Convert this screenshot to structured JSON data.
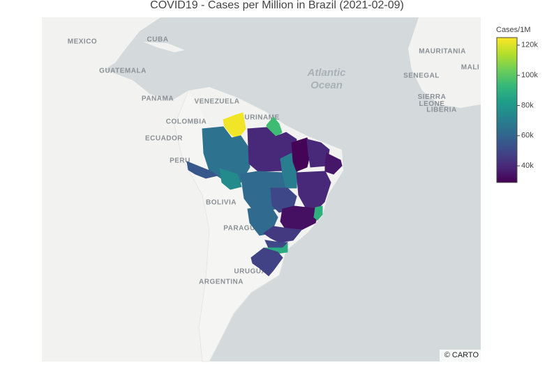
{
  "chart_data": {
    "type": "choropleth",
    "title": "COVID19 - Cases per Million in Brazil (2021-02-09)",
    "colorbar_title": "Cases/1M",
    "zlim": [
      29000,
      125000
    ],
    "zticks": [
      {
        "value": 40000,
        "label": "40k"
      },
      {
        "value": 60000,
        "label": "60k"
      },
      {
        "value": 80000,
        "label": "80k"
      },
      {
        "value": 100000,
        "label": "100k"
      },
      {
        "value": 120000,
        "label": "120k"
      }
    ],
    "colorscale": [
      "#440154",
      "#482878",
      "#3e4989",
      "#31688e",
      "#26828e",
      "#1f9e89",
      "#35b779",
      "#6ece58",
      "#b5de2b",
      "#fde725"
    ],
    "values": [
      123000,
      95000,
      65000,
      55000,
      75000,
      40000,
      62000,
      70000,
      30000,
      40000,
      35000,
      40000,
      50000,
      62000,
      33000,
      90000,
      45000,
      50000,
      88000,
      48000
    ]
  },
  "map": {
    "labels": [
      "MEXICO",
      "CUBA",
      "GUATEMALA",
      "PANAMA",
      "VENEZUELA",
      "COLOMBIA",
      "ECUADOR",
      "PERU",
      "SURINAME",
      "BOLIVIA",
      "PARAGUAY",
      "URUGUAY",
      "ARGENTINA",
      "MAURITANIA",
      "MALI",
      "SENEGAL",
      "SIERRA LEONE",
      "LIBERIA"
    ],
    "ocean_label": [
      "Atlantic",
      "Ocean"
    ],
    "attribution": "© CARTO"
  }
}
